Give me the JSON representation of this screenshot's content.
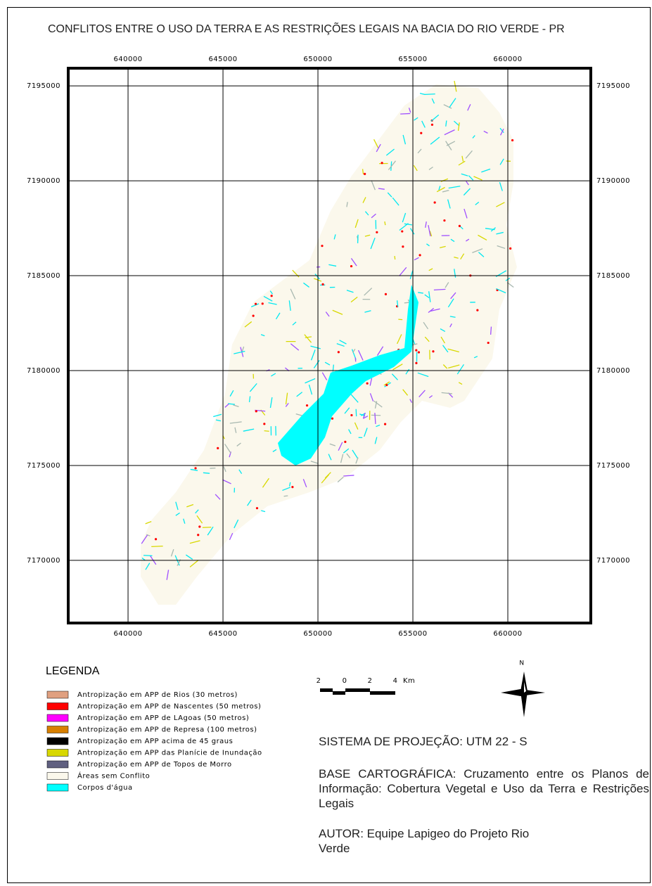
{
  "title": "CONFLITOS ENTRE O USO DA TERRA E AS  RESTRIÇÕES LEGAIS NA BACIA DO RIO VERDE - PR",
  "map": {
    "xlim": [
      636850,
      664370
    ],
    "ylim": [
      7166700,
      7195930
    ],
    "xticks": [
      640000,
      645000,
      650000,
      655000,
      660000
    ],
    "yticks": [
      7170000,
      7175000,
      7180000,
      7185000,
      7190000,
      7195000
    ],
    "grid": true
  },
  "legend": {
    "title": "LEGENDA",
    "items": [
      {
        "label": "Antropização em APP  de Rios (30 metros)",
        "color": "#e0a080"
      },
      {
        "label": "Antropização em APP de Nascentes (50 metros)",
        "color": "#ff0000"
      },
      {
        "label": "Antropização em APP de LAgoas (50 metros)",
        "color": "#ff00ff"
      },
      {
        "label": "Antropização em APP de Represa (100 metros)",
        "color": "#d88000"
      },
      {
        "label": "Antropização em APP acima de 45 graus",
        "color": "#000000"
      },
      {
        "label": "Antropização em APP das Planície de Inundação",
        "color": "#d8d800"
      },
      {
        "label": "Antropização em APP de Topos de Morro",
        "color": "#606080"
      },
      {
        "label": "Áreas sem Conflito",
        "color": "#fbf8ec"
      },
      {
        "label": "Corpos d'água",
        "color": "#00ffff"
      }
    ]
  },
  "scale_bar": {
    "labels": [
      "2",
      "0",
      "2",
      "4"
    ],
    "unit": "Km"
  },
  "north": "N",
  "projection": "SISTEMA DE PROJEÇÃO: UTM 22 - S",
  "base": "BASE CARTOGRÁFICA:   Cruzamento entre os Planos de Informação: Cobertura Vegetal e Uso da Terra e Restrições Legais",
  "author": "AUTOR: Equipe Lapigeo do Projeto Rio Verde"
}
